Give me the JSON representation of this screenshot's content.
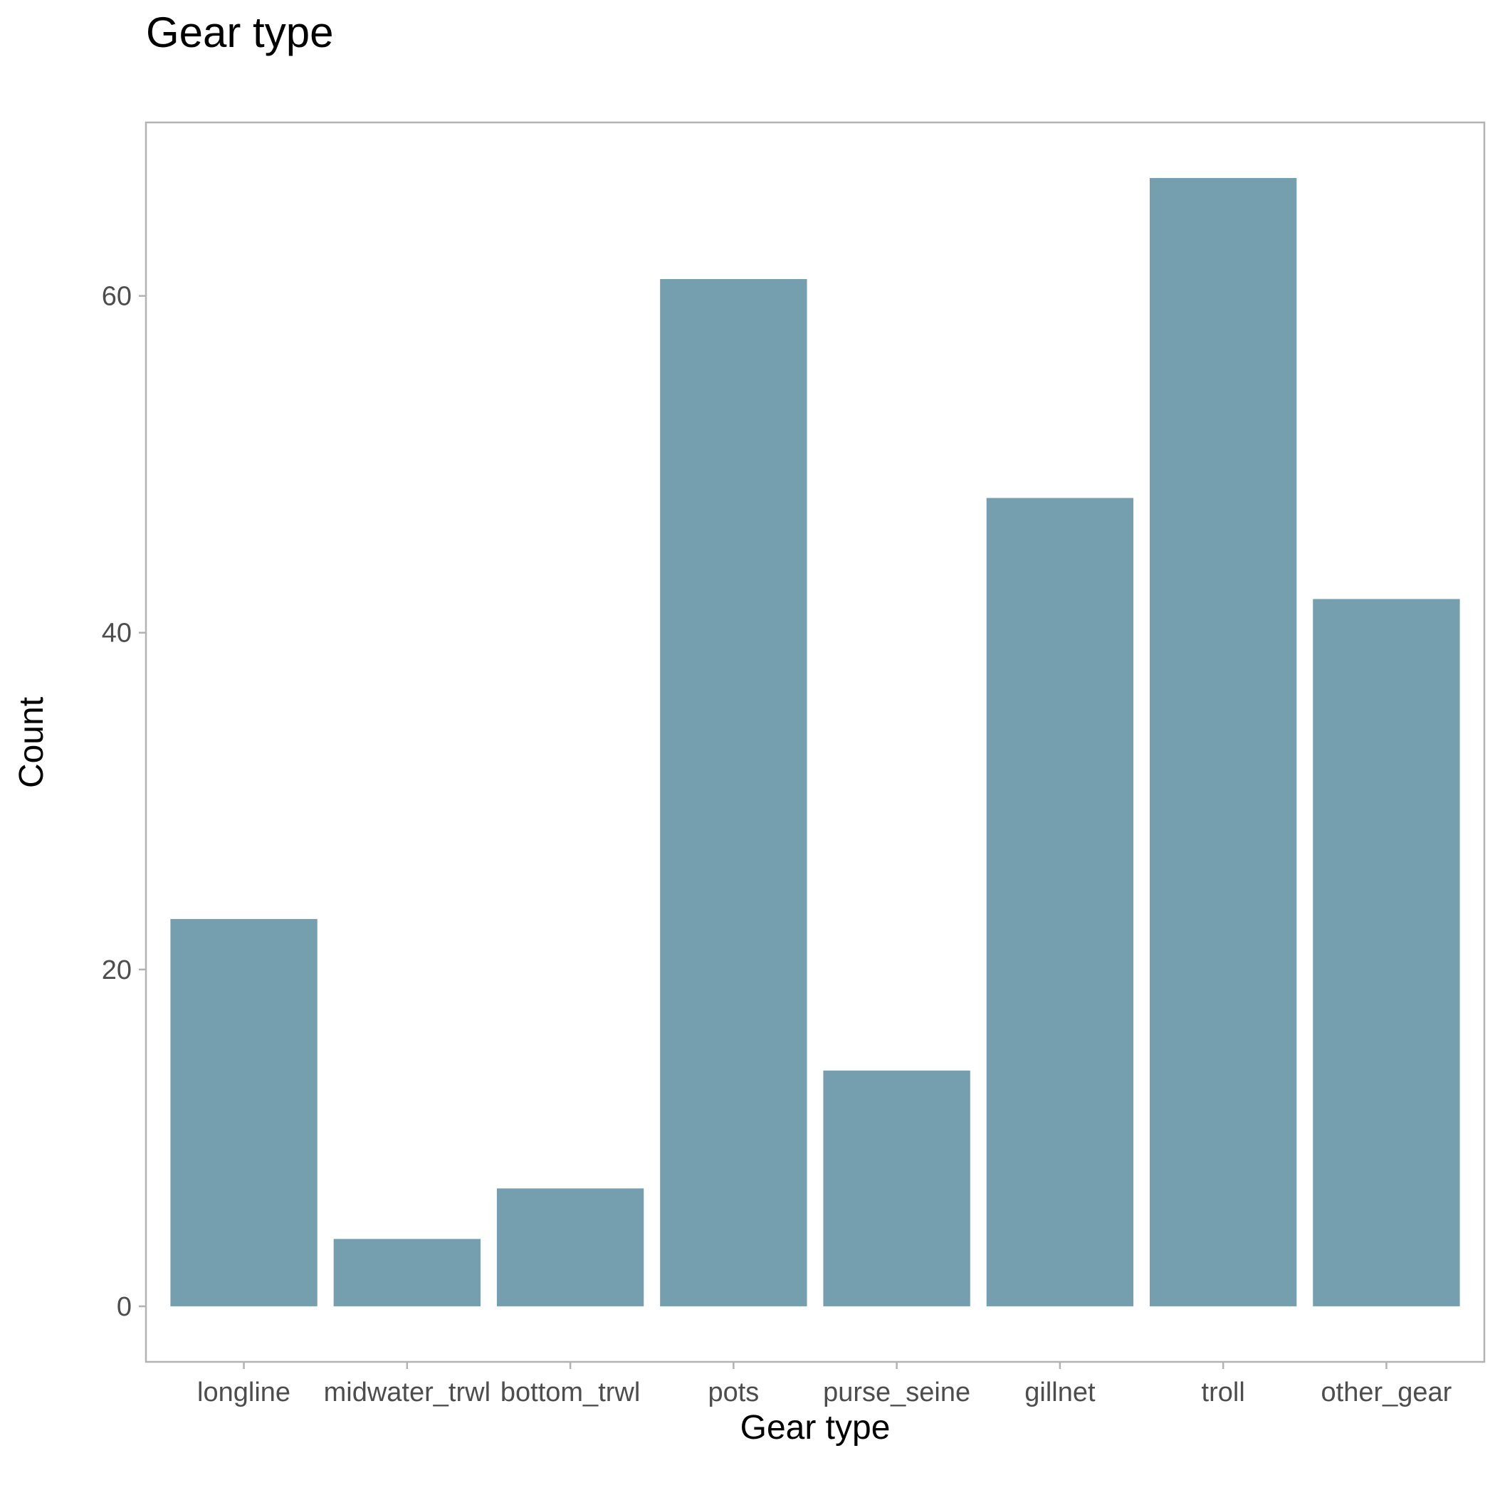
{
  "chart_data": {
    "type": "bar",
    "title": "Gear type",
    "xlabel": "Gear type",
    "ylabel": "Count",
    "categories": [
      "longline",
      "midwater_trwl",
      "bottom_trwl",
      "pots",
      "purse_seine",
      "gillnet",
      "troll",
      "other_gear"
    ],
    "values": [
      23,
      4,
      7,
      61,
      14,
      48,
      67,
      42
    ],
    "yticks": [
      0,
      20,
      40,
      60
    ],
    "ylim": [
      -3.3,
      70.3
    ],
    "grid": false,
    "legend": "none",
    "bar_color": "#759eaf"
  }
}
